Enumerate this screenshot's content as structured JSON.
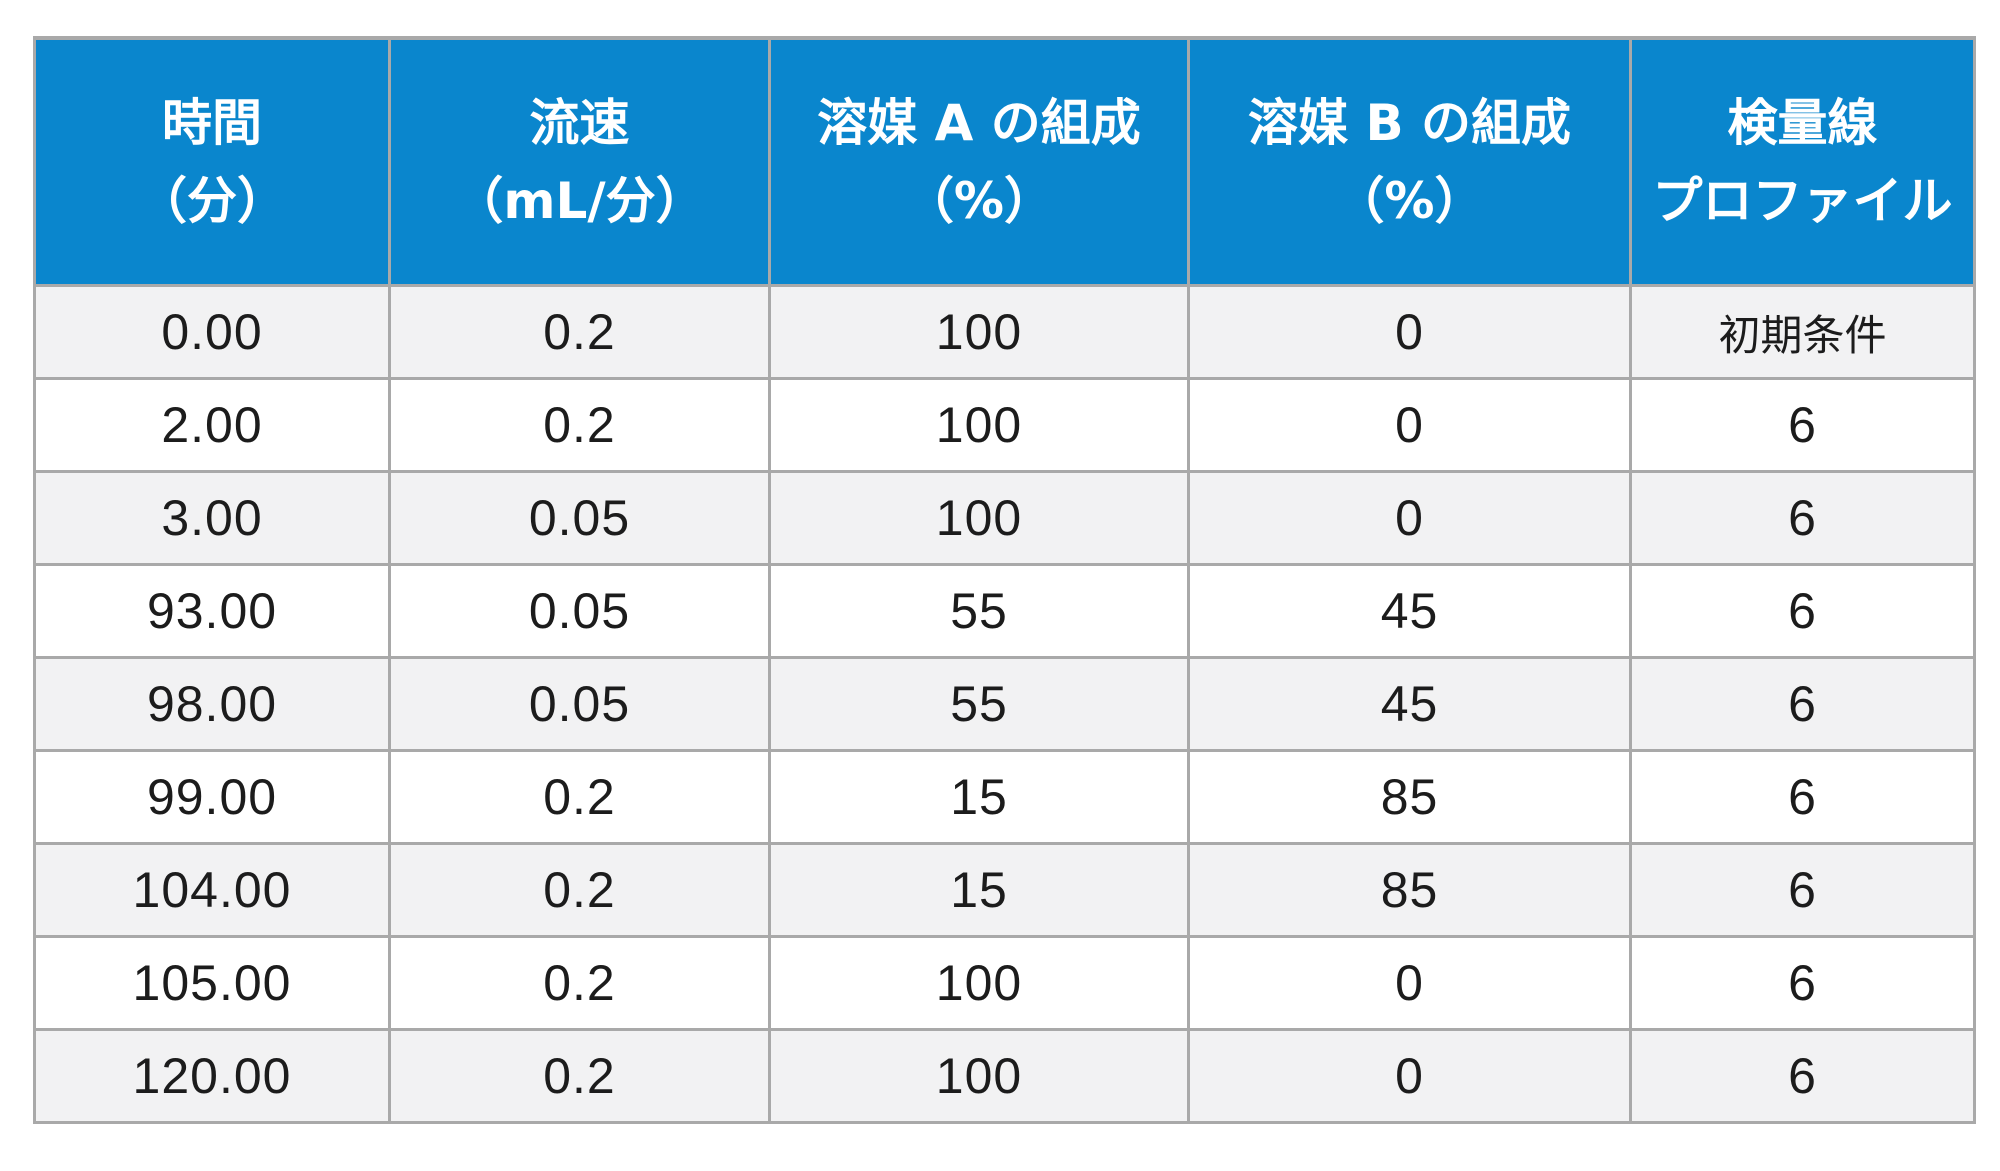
{
  "headers": [
    {
      "line1": "時間",
      "line2": "（分）"
    },
    {
      "line1": "流速",
      "line2": "（mL/分）"
    },
    {
      "line1": "溶媒 A の組成",
      "line2": "（%）"
    },
    {
      "line1": "溶媒 B の組成",
      "line2": "（%）"
    },
    {
      "line1": "検量線",
      "line2": "プロファイル"
    }
  ],
  "rows": [
    [
      "0.00",
      "0.2",
      "100",
      "0",
      "初期条件"
    ],
    [
      "2.00",
      "0.2",
      "100",
      "0",
      "6"
    ],
    [
      "3.00",
      "0.05",
      "100",
      "0",
      "6"
    ],
    [
      "93.00",
      "0.05",
      "55",
      "45",
      "6"
    ],
    [
      "98.00",
      "0.05",
      "55",
      "45",
      "6"
    ],
    [
      "99.00",
      "0.2",
      "15",
      "85",
      "6"
    ],
    [
      "104.00",
      "0.2",
      "15",
      "85",
      "6"
    ],
    [
      "105.00",
      "0.2",
      "100",
      "0",
      "6"
    ],
    [
      "120.00",
      "0.2",
      "100",
      "0",
      "6"
    ]
  ],
  "colors": {
    "header_bg": "#0a86cd",
    "header_text": "#ffffff",
    "row_alt_bg": "#f2f2f3",
    "border": "#a9a9a9"
  }
}
